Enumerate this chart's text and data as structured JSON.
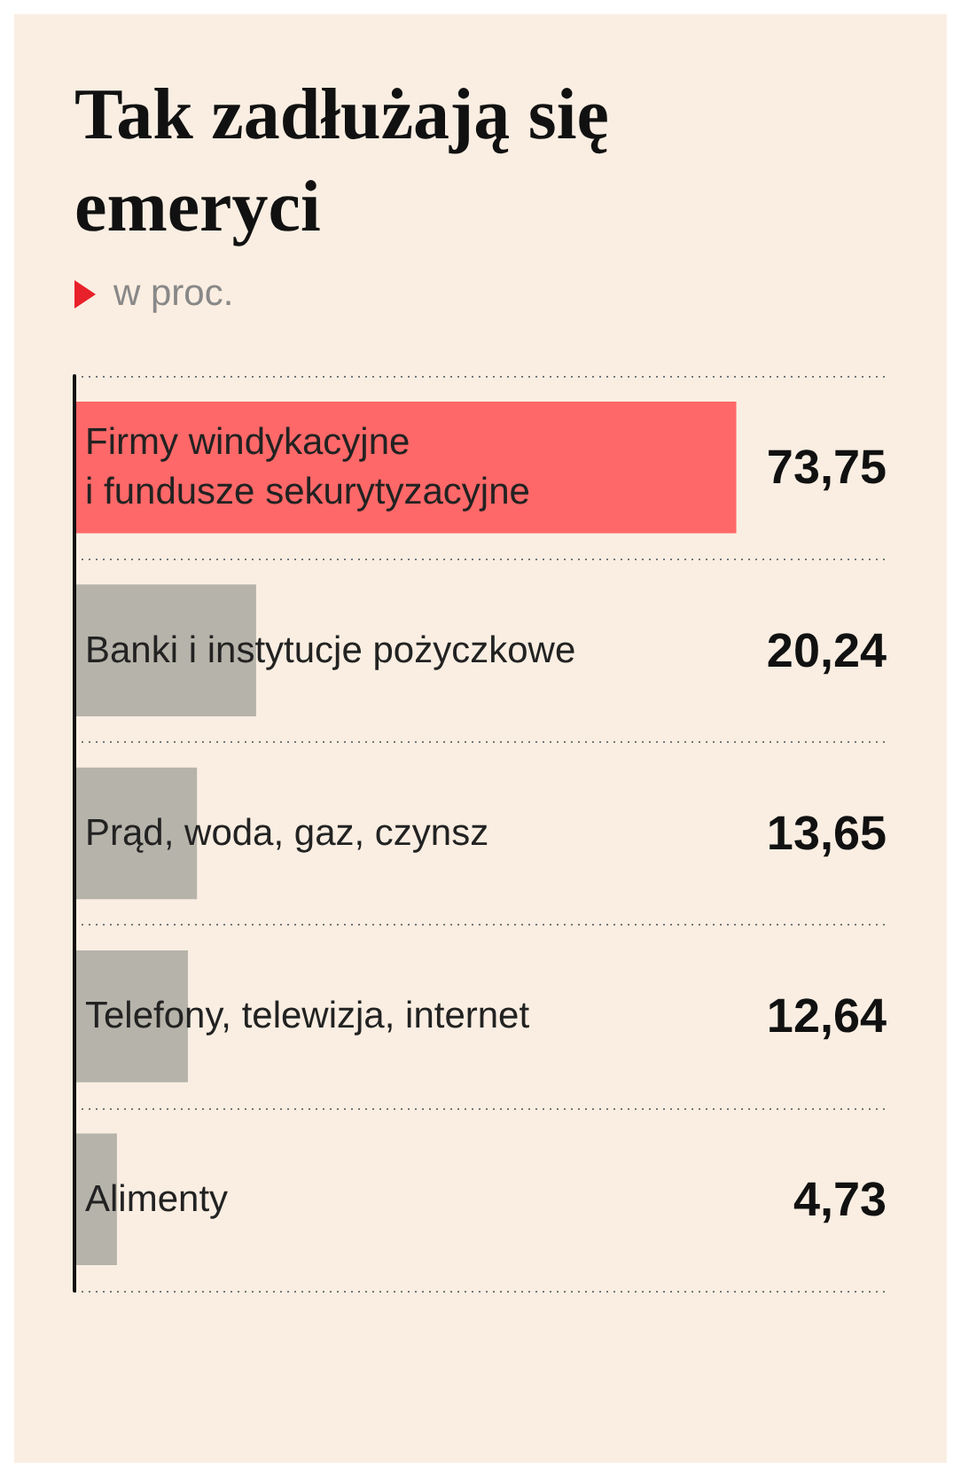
{
  "chart_data": {
    "type": "bar",
    "orientation": "horizontal",
    "title": "Tak zadłużają się emeryci",
    "subtitle": "w proc.",
    "categories": [
      "Firmy windykacyjne\ni fundusze sekurytyzacyjne",
      "Banki i instytucje pożyczkowe",
      "Prąd, woda, gaz, czynsz",
      "Telefony, telewizja, internet",
      "Alimenty"
    ],
    "values": [
      73.75,
      20.24,
      13.65,
      12.64,
      4.73
    ],
    "value_labels": [
      "73,75",
      "20,24",
      "13,65",
      "12,64",
      "4,73"
    ],
    "colors": [
      "#ff6868",
      "#b6b3aa",
      "#b6b3aa",
      "#b6b3aa",
      "#b6b3aa"
    ],
    "grid": "y"
  }
}
